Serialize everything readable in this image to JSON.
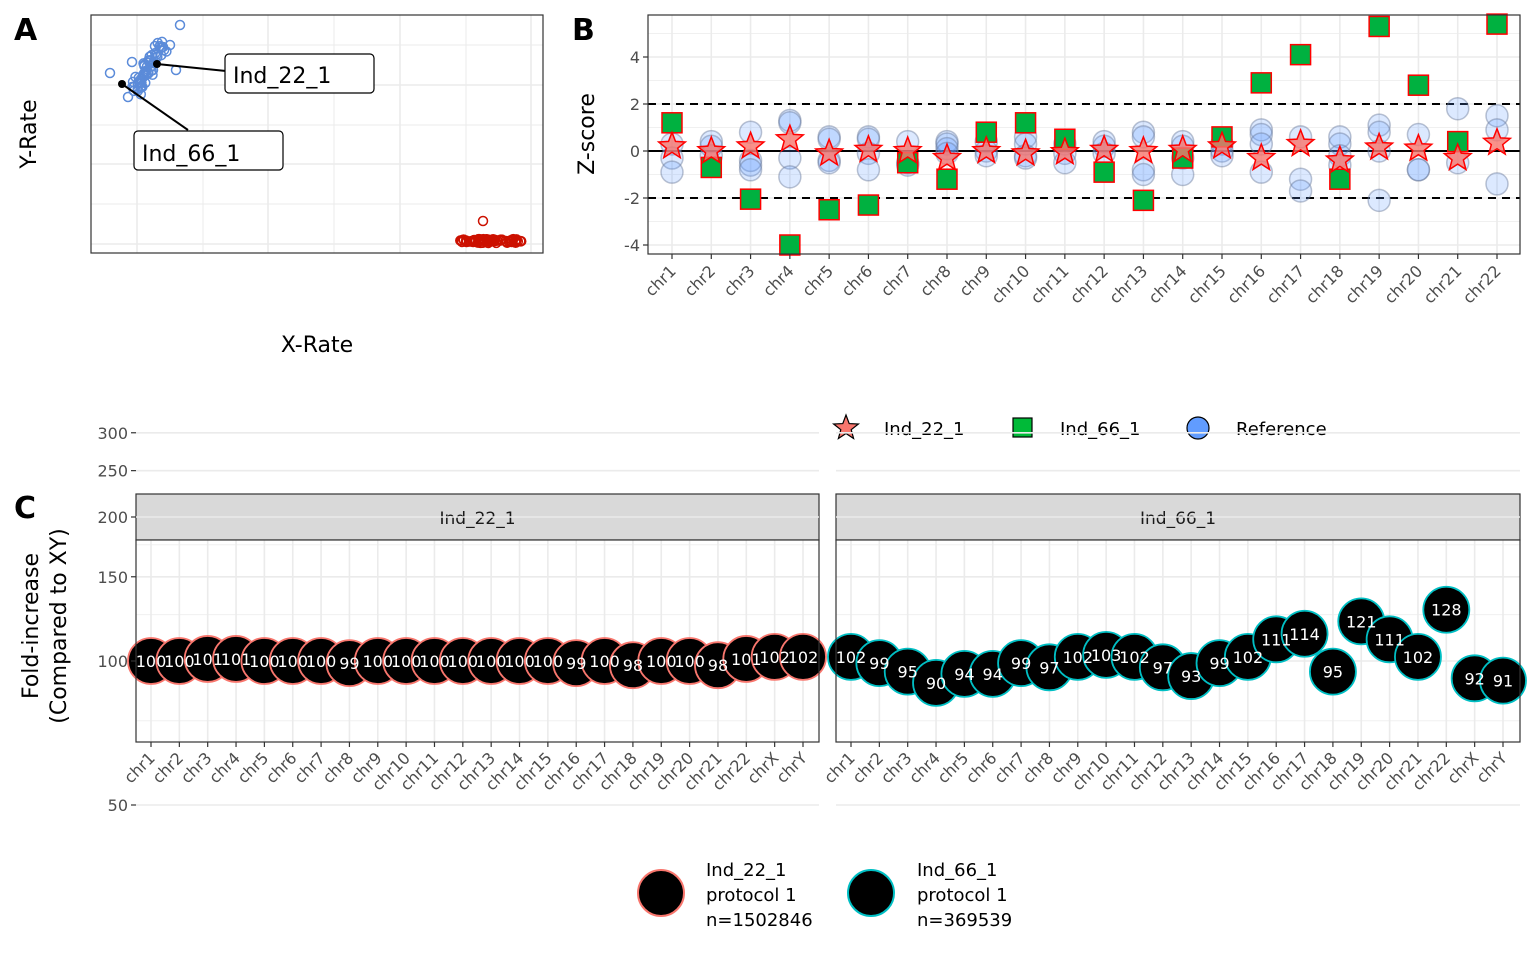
{
  "figure": {
    "panel_letters": [
      "A",
      "B",
      "C"
    ]
  },
  "chart_data": [
    {
      "panel": "A",
      "type": "scatter",
      "title": "",
      "xlabel": "X-Rate",
      "ylabel": "Y-Rate",
      "x_ticks_shown": false,
      "y_ticks_shown": false,
      "grid": true,
      "groups": [
        {
          "name": "XY cluster",
          "color": "#5b8bd9",
          "description": "cluster of open circles at low X-Rate, high Y-Rate"
        },
        {
          "name": "XX cluster",
          "color": "#cc1100",
          "description": "cluster of open circles at high X-Rate, near-zero Y-Rate"
        }
      ],
      "labels": [
        {
          "text": "Ind_22_1",
          "group": "XY cluster"
        },
        {
          "text": "Ind_66_1",
          "group": "XY cluster"
        }
      ]
    },
    {
      "panel": "B",
      "type": "scatter",
      "title": "",
      "xlabel": "",
      "ylabel": "Z-score",
      "categories": [
        "chr1",
        "chr2",
        "chr3",
        "chr4",
        "chr5",
        "chr6",
        "chr7",
        "chr8",
        "chr9",
        "chr10",
        "chr11",
        "chr12",
        "chr13",
        "chr14",
        "chr15",
        "chr16",
        "chr17",
        "chr18",
        "chr19",
        "chr20",
        "chr21",
        "chr22"
      ],
      "ylim": [
        -4.4,
        5.8
      ],
      "yticks": [
        -4,
        -2,
        0,
        2,
        4
      ],
      "hlines": [
        {
          "y": 2,
          "style": "dashed"
        },
        {
          "y": 0,
          "style": "solid"
        },
        {
          "y": -2,
          "style": "dashed"
        }
      ],
      "grid": true,
      "legend": {
        "position": "bottom",
        "entries": [
          {
            "label": "Ind_22_1",
            "shape": "star",
            "fill": "#f8766d"
          },
          {
            "label": "Ind_66_1",
            "shape": "square",
            "fill": "#00ba38"
          },
          {
            "label": "Reference",
            "shape": "circle",
            "fill": "#619cff"
          }
        ]
      },
      "series": [
        {
          "name": "Ind_22_1",
          "values": [
            0.2,
            0.0,
            0.2,
            0.5,
            -0.1,
            0.05,
            0.0,
            -0.3,
            0.0,
            -0.1,
            -0.05,
            0.05,
            0.0,
            0.05,
            0.2,
            -0.3,
            0.3,
            -0.4,
            0.15,
            0.1,
            -0.3,
            0.35
          ]
        },
        {
          "name": "Ind_66_1",
          "values": [
            1.2,
            -0.7,
            -2.05,
            -4.0,
            -2.5,
            -2.3,
            -0.5,
            -1.2,
            0.8,
            1.2,
            0.5,
            -0.9,
            -2.1,
            -0.3,
            0.6,
            2.9,
            4.1,
            -1.2,
            5.3,
            2.8,
            0.4,
            5.4
          ]
        },
        {
          "name": "Reference",
          "values": [
            [
              0.3,
              -0.3,
              -0.9
            ],
            [
              0.4,
              0.2,
              -0.2
            ],
            [
              0.8,
              -0.4,
              -0.6,
              -0.8
            ],
            [
              1.3,
              1.2,
              -0.3,
              -1.1
            ],
            [
              0.6,
              0.5,
              -0.4,
              -0.5
            ],
            [
              0.6,
              0.5,
              -0.1,
              -0.8
            ],
            [
              0.4,
              -0.5,
              -0.6
            ],
            [
              0.4,
              0.3,
              0.1,
              -0.1
            ],
            [
              0.4,
              0.0,
              -0.2
            ],
            [
              0.6,
              0.3,
              -0.2,
              -0.3
            ],
            [
              0.3,
              -0.1,
              -0.5
            ],
            [
              0.4,
              0.2,
              -0.1
            ],
            [
              0.8,
              0.6,
              -0.8,
              -1.0
            ],
            [
              0.4,
              0.2,
              -0.3,
              -1.0
            ],
            [
              0.3,
              0.0,
              -0.2
            ],
            [
              0.9,
              0.7,
              0.3,
              -0.9
            ],
            [
              0.6,
              -1.2,
              -1.7
            ],
            [
              0.6,
              0.3,
              -0.2,
              -0.6
            ],
            [
              1.1,
              0.8,
              0.0,
              -2.1
            ],
            [
              0.7,
              -0.8,
              -0.8
            ],
            [
              1.8,
              -0.5
            ],
            [
              1.5,
              0.9,
              -1.4
            ]
          ]
        }
      ]
    },
    {
      "panel": "C",
      "type": "scatter",
      "title": "",
      "xlabel": "",
      "ylabel": "Fold-increase\n(Compared to XY)",
      "ylabel_lines": [
        "Fold-increase",
        "(Compared to XY)"
      ],
      "y_scale": "log",
      "ylim": [
        47,
        330
      ],
      "yticks": [
        50,
        100,
        150,
        200,
        250,
        300
      ],
      "grid": true,
      "categories": [
        "chr1",
        "chr2",
        "chr3",
        "chr4",
        "chr5",
        "chr6",
        "chr7",
        "chr8",
        "chr9",
        "chr10",
        "chr11",
        "chr12",
        "chr13",
        "chr14",
        "chr15",
        "chr16",
        "chr17",
        "chr18",
        "chr19",
        "chr20",
        "chr21",
        "chr22",
        "chrX",
        "chrY"
      ],
      "facets": [
        {
          "strip": "Ind_22_1",
          "outline": "#f8766d",
          "values": [
            100,
            100,
            101,
            101,
            100,
            100,
            100,
            99,
            100,
            100,
            100,
            100,
            100,
            100,
            100,
            99,
            100,
            98,
            100,
            100,
            98,
            101,
            102,
            102
          ]
        },
        {
          "strip": "Ind_66_1",
          "outline": "#00bfc4",
          "values": [
            102,
            99,
            95,
            90,
            94,
            94,
            99,
            97,
            102,
            103,
            102,
            97,
            93,
            99,
            102,
            111,
            114,
            95,
            121,
            111,
            102,
            128,
            92,
            91
          ]
        }
      ],
      "legend": {
        "position": "bottom",
        "entries": [
          {
            "lines": [
              "Ind_22_1",
              "protocol 1",
              "n=1502846"
            ],
            "fill": "#000000",
            "outline": "#f8766d"
          },
          {
            "lines": [
              "Ind_66_1",
              "protocol 1",
              "n=369539"
            ],
            "fill": "#000000",
            "outline": "#00bfc4"
          }
        ]
      }
    }
  ]
}
